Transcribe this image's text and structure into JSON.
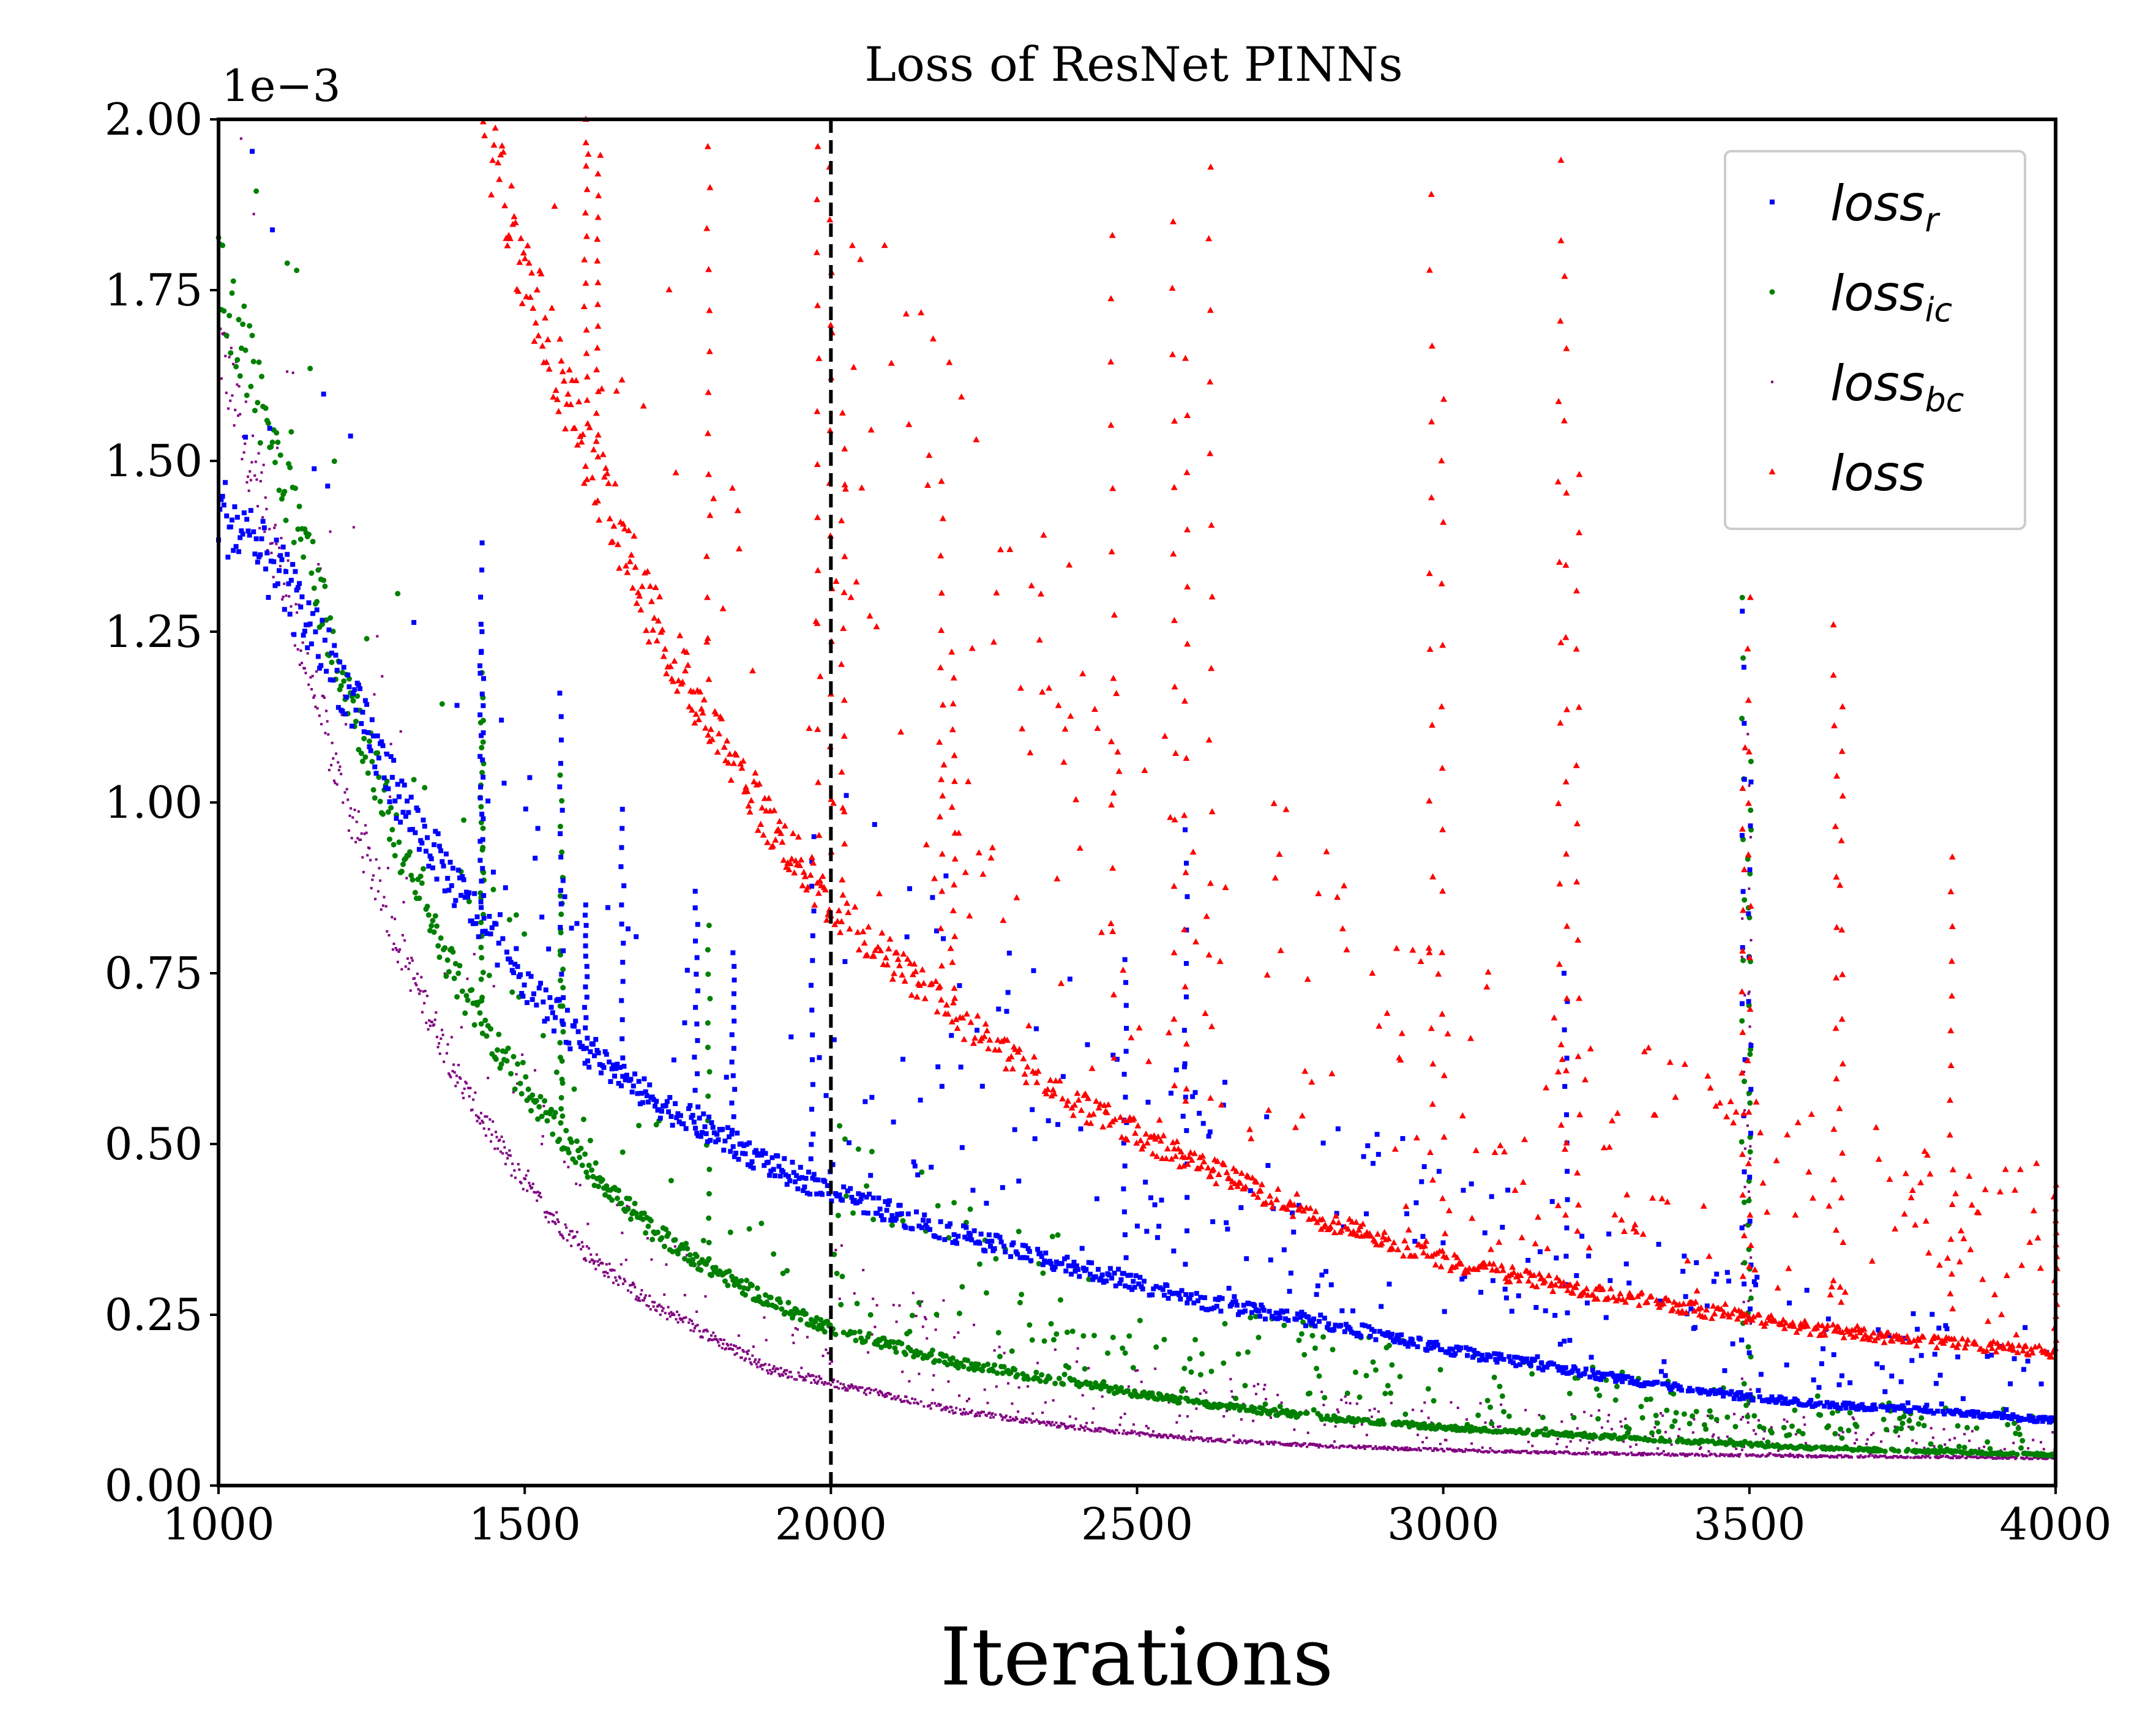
{
  "chart_data": {
    "type": "scatter",
    "title": "Loss of ResNet PINNs",
    "xlabel": "Iterations",
    "ylabel": "",
    "y_offset_label": "1e−3",
    "xlim": [
      1000,
      4000
    ],
    "ylim": [
      0.0,
      2.0
    ],
    "x_ticks": [
      1000,
      1500,
      2000,
      2500,
      3000,
      3500,
      4000
    ],
    "y_ticks": [
      0.0,
      0.25,
      0.5,
      0.75,
      1.0,
      1.25,
      1.5,
      1.75,
      2.0
    ],
    "y_tick_labels": [
      "0.00",
      "0.25",
      "0.50",
      "0.75",
      "1.00",
      "1.25",
      "1.50",
      "1.75",
      "2.00"
    ],
    "vline_x": 2000,
    "legend_position": "top-right",
    "grid": false,
    "series": [
      {
        "name": "loss_r",
        "legend_base": "loss",
        "legend_sub": "r",
        "color": "#0000ff",
        "marker": "square",
        "baseline": [
          [
            1000,
            1.43
          ],
          [
            1100,
            1.33
          ],
          [
            1200,
            1.18
          ],
          [
            1300,
            1.0
          ],
          [
            1400,
            0.86
          ],
          [
            1500,
            0.74
          ],
          [
            1600,
            0.64
          ],
          [
            1700,
            0.57
          ],
          [
            1800,
            0.52
          ],
          [
            1900,
            0.47
          ],
          [
            2000,
            0.43
          ],
          [
            2200,
            0.37
          ],
          [
            2400,
            0.32
          ],
          [
            2600,
            0.27
          ],
          [
            2800,
            0.24
          ],
          [
            3000,
            0.2
          ],
          [
            3200,
            0.17
          ],
          [
            3400,
            0.14
          ],
          [
            3600,
            0.12
          ],
          [
            3800,
            0.11
          ],
          [
            4000,
            0.095
          ]
        ],
        "spikes": [
          [
            1430,
            1.38
          ],
          [
            1430,
            1.25
          ],
          [
            1560,
            1.16
          ],
          [
            1600,
            0.85
          ],
          [
            1660,
            0.99
          ],
          [
            1780,
            0.87
          ],
          [
            1840,
            0.78
          ],
          [
            1970,
            0.95
          ],
          [
            2480,
            0.77
          ],
          [
            2580,
            0.96
          ],
          [
            3200,
            0.75
          ],
          [
            3490,
            1.28
          ],
          [
            3500,
            1.03
          ]
        ]
      },
      {
        "name": "loss_ic",
        "legend_base": "loss",
        "legend_sub": "ic",
        "color": "#008000",
        "marker": "circle",
        "baseline": [
          [
            1000,
            1.78
          ],
          [
            1100,
            1.5
          ],
          [
            1200,
            1.2
          ],
          [
            1300,
            0.92
          ],
          [
            1400,
            0.72
          ],
          [
            1500,
            0.58
          ],
          [
            1600,
            0.47
          ],
          [
            1700,
            0.38
          ],
          [
            1800,
            0.32
          ],
          [
            1900,
            0.27
          ],
          [
            2000,
            0.23
          ],
          [
            2200,
            0.18
          ],
          [
            2400,
            0.15
          ],
          [
            2600,
            0.12
          ],
          [
            2800,
            0.1
          ],
          [
            3000,
            0.085
          ],
          [
            3200,
            0.075
          ],
          [
            3400,
            0.065
          ],
          [
            3600,
            0.055
          ],
          [
            3800,
            0.05
          ],
          [
            4000,
            0.045
          ]
        ],
        "spikes": [
          [
            1430,
            1.19
          ],
          [
            1430,
            1.12
          ],
          [
            1560,
            1.04
          ],
          [
            1560,
            0.89
          ],
          [
            1800,
            0.82
          ],
          [
            3490,
            1.3
          ],
          [
            3500,
            1.06
          ],
          [
            3500,
            0.96
          ]
        ]
      },
      {
        "name": "loss_bc",
        "legend_base": "loss",
        "legend_sub": "bc",
        "color": "#800080",
        "marker": "dot",
        "baseline": [
          [
            1000,
            1.68
          ],
          [
            1100,
            1.35
          ],
          [
            1200,
            1.02
          ],
          [
            1300,
            0.78
          ],
          [
            1400,
            0.58
          ],
          [
            1500,
            0.44
          ],
          [
            1600,
            0.34
          ],
          [
            1700,
            0.27
          ],
          [
            1800,
            0.22
          ],
          [
            1900,
            0.17
          ],
          [
            2000,
            0.15
          ],
          [
            2200,
            0.11
          ],
          [
            2400,
            0.085
          ],
          [
            2600,
            0.068
          ],
          [
            2800,
            0.058
          ],
          [
            3000,
            0.052
          ],
          [
            3200,
            0.048
          ],
          [
            3400,
            0.045
          ],
          [
            3600,
            0.043
          ],
          [
            3800,
            0.042
          ],
          [
            4000,
            0.04
          ]
        ],
        "spikes": [
          [
            3500,
            1.1
          ],
          [
            3490,
            0.83
          ],
          [
            3500,
            0.72
          ]
        ]
      },
      {
        "name": "loss",
        "legend_base": "loss",
        "legend_sub": "",
        "color": "#ff0000",
        "marker": "triangle",
        "baseline": [
          [
            1430,
            2.0
          ],
          [
            1500,
            1.78
          ],
          [
            1600,
            1.52
          ],
          [
            1700,
            1.29
          ],
          [
            1800,
            1.12
          ],
          [
            1900,
            0.97
          ],
          [
            2000,
            0.85
          ],
          [
            2200,
            0.69
          ],
          [
            2400,
            0.56
          ],
          [
            2600,
            0.47
          ],
          [
            2800,
            0.39
          ],
          [
            3000,
            0.33
          ],
          [
            3200,
            0.29
          ],
          [
            3400,
            0.26
          ],
          [
            3600,
            0.23
          ],
          [
            3800,
            0.21
          ],
          [
            4000,
            0.195
          ]
        ],
        "spikes": [
          [
            1600,
            2.0
          ],
          [
            1620,
            1.92
          ],
          [
            1800,
            1.96
          ],
          [
            1980,
            1.96
          ],
          [
            2000,
            1.93
          ],
          [
            2020,
            1.57
          ],
          [
            2180,
            1.47
          ],
          [
            2200,
            1.22
          ],
          [
            2460,
            1.83
          ],
          [
            2560,
            1.85
          ],
          [
            2580,
            1.65
          ],
          [
            2620,
            1.93
          ],
          [
            2980,
            1.89
          ],
          [
            3000,
            1.59
          ],
          [
            3190,
            1.94
          ],
          [
            3200,
            1.77
          ],
          [
            3220,
            1.48
          ],
          [
            3500,
            1.3
          ],
          [
            3490,
            1.08
          ],
          [
            3640,
            1.26
          ],
          [
            3650,
            1.14
          ],
          [
            3830,
            0.92
          ],
          [
            4000,
            0.44
          ]
        ]
      }
    ]
  }
}
